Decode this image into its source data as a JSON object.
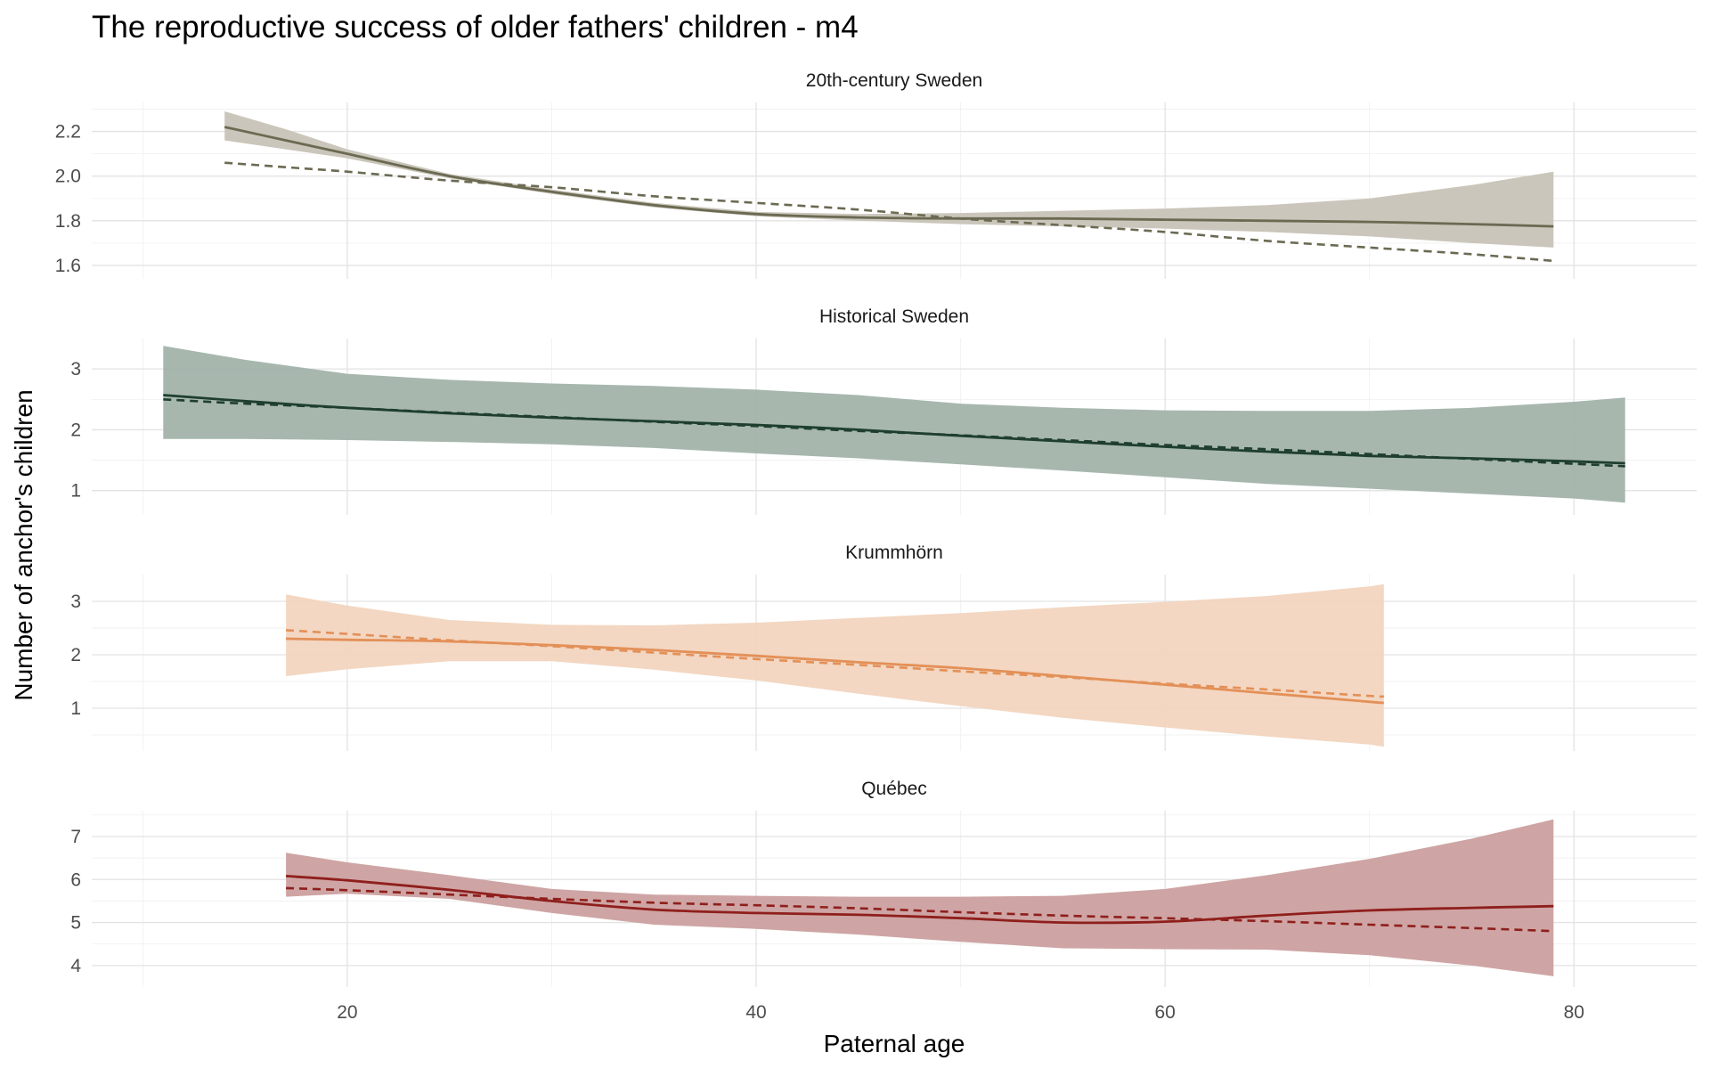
{
  "chart_data": {
    "type": "line",
    "title": "The reproductive success of older fathers' children - m4",
    "xlabel": "Paternal age",
    "ylabel": "Number of anchor's children",
    "xlim": [
      7.5,
      86
    ],
    "x_ticks": [
      20,
      40,
      60,
      80
    ],
    "grid": true,
    "legend": "none",
    "line_styles": {
      "model_curve": "solid",
      "linear_fit": "dashed",
      "interval": "shaded ribbon"
    },
    "panels": [
      {
        "name": "20th-century Sweden",
        "color": "#6b6a52",
        "fill": "#c8c3b7",
        "ylim": [
          1.54,
          2.33
        ],
        "y_ticks": [
          1.6,
          1.8,
          2.0,
          2.2
        ],
        "x": [
          14,
          17,
          20,
          25,
          30,
          35,
          40,
          45,
          50,
          55,
          60,
          65,
          70,
          75,
          79
        ],
        "fit": [
          2.22,
          2.16,
          2.1,
          2.0,
          1.93,
          1.87,
          1.83,
          1.815,
          1.81,
          1.81,
          1.805,
          1.8,
          1.795,
          1.785,
          1.775
        ],
        "lower": [
          2.16,
          2.12,
          2.08,
          1.99,
          1.92,
          1.86,
          1.82,
          1.8,
          1.785,
          1.775,
          1.765,
          1.75,
          1.73,
          1.7,
          1.68
        ],
        "upper": [
          2.29,
          2.21,
          2.12,
          2.01,
          1.94,
          1.88,
          1.84,
          1.83,
          1.835,
          1.845,
          1.855,
          1.87,
          1.9,
          1.96,
          2.02
        ],
        "linear": [
          2.06,
          2.04,
          2.02,
          1.98,
          1.95,
          1.91,
          1.88,
          1.85,
          1.81,
          1.78,
          1.75,
          1.71,
          1.68,
          1.65,
          1.62
        ]
      },
      {
        "name": "Historical Sweden",
        "color": "#1f3f2e",
        "fill": "#a2b3aa",
        "ylim": [
          0.6,
          3.5
        ],
        "y_ticks": [
          1,
          2,
          3
        ],
        "x": [
          11,
          15,
          20,
          25,
          30,
          35,
          40,
          45,
          50,
          55,
          60,
          65,
          70,
          75,
          80,
          82.5
        ],
        "fit": [
          2.57,
          2.47,
          2.36,
          2.27,
          2.2,
          2.14,
          2.08,
          2.0,
          1.9,
          1.81,
          1.72,
          1.64,
          1.57,
          1.53,
          1.48,
          1.45
        ],
        "lower": [
          1.85,
          1.85,
          1.83,
          1.8,
          1.76,
          1.7,
          1.61,
          1.53,
          1.43,
          1.33,
          1.22,
          1.11,
          1.03,
          0.95,
          0.87,
          0.8
        ],
        "upper": [
          3.38,
          3.15,
          2.92,
          2.82,
          2.76,
          2.72,
          2.66,
          2.57,
          2.43,
          2.36,
          2.32,
          2.31,
          2.31,
          2.36,
          2.46,
          2.53
        ],
        "linear": [
          2.5,
          2.43,
          2.36,
          2.28,
          2.21,
          2.13,
          2.06,
          1.98,
          1.91,
          1.83,
          1.75,
          1.68,
          1.6,
          1.52,
          1.44,
          1.4
        ]
      },
      {
        "name": "Krummhörn",
        "color": "#e39058",
        "fill": "#f2d5bf",
        "ylim": [
          0.2,
          3.5
        ],
        "y_ticks": [
          1,
          2,
          3
        ],
        "x": [
          17,
          20,
          25,
          30,
          35,
          40,
          45,
          50,
          55,
          60,
          65,
          70,
          70.7
        ],
        "fit": [
          2.3,
          2.28,
          2.25,
          2.18,
          2.09,
          1.98,
          1.86,
          1.75,
          1.6,
          1.44,
          1.28,
          1.12,
          1.1
        ],
        "lower": [
          1.6,
          1.73,
          1.88,
          1.88,
          1.72,
          1.52,
          1.27,
          1.04,
          0.82,
          0.64,
          0.47,
          0.32,
          0.28
        ],
        "upper": [
          3.13,
          2.92,
          2.65,
          2.56,
          2.55,
          2.6,
          2.69,
          2.78,
          2.89,
          2.99,
          3.1,
          3.28,
          3.32
        ],
        "linear": [
          2.46,
          2.39,
          2.27,
          2.16,
          2.04,
          1.92,
          1.81,
          1.69,
          1.58,
          1.46,
          1.35,
          1.23,
          1.22
        ]
      },
      {
        "name": "Québec",
        "color": "#8f1f1c",
        "fill": "#cba09f",
        "ylim": [
          3.5,
          7.6
        ],
        "y_ticks": [
          4,
          5,
          6,
          7
        ],
        "x": [
          17,
          20,
          25,
          30,
          35,
          40,
          45,
          50,
          55,
          60,
          65,
          70,
          75,
          79
        ],
        "fit": [
          6.08,
          5.98,
          5.76,
          5.5,
          5.3,
          5.22,
          5.18,
          5.1,
          5.0,
          5.02,
          5.16,
          5.28,
          5.34,
          5.38
        ],
        "lower": [
          5.6,
          5.67,
          5.55,
          5.22,
          4.95,
          4.85,
          4.72,
          4.55,
          4.4,
          4.38,
          4.37,
          4.24,
          4.0,
          3.75
        ],
        "upper": [
          6.62,
          6.4,
          6.1,
          5.78,
          5.65,
          5.62,
          5.6,
          5.6,
          5.62,
          5.78,
          6.1,
          6.48,
          6.95,
          7.4
        ],
        "linear": [
          5.8,
          5.75,
          5.65,
          5.55,
          5.46,
          5.4,
          5.33,
          5.24,
          5.16,
          5.1,
          5.03,
          4.95,
          4.87,
          4.8
        ]
      }
    ]
  }
}
